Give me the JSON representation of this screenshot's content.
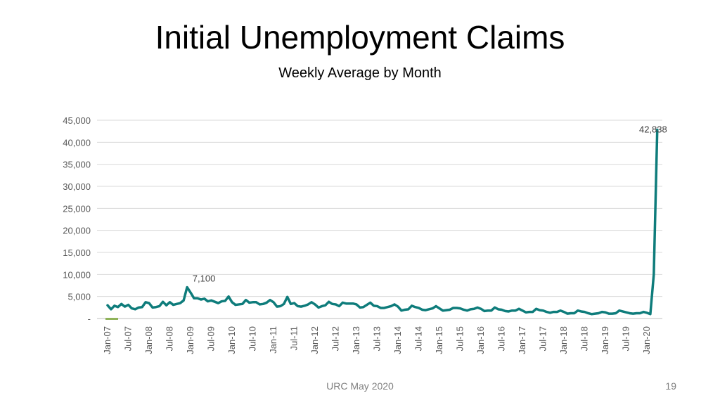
{
  "slide": {
    "title": "Initial Unemployment Claims",
    "subtitle": "Weekly Average by Month",
    "footer": "URC May 2020",
    "page_number": "19"
  },
  "chart_data": {
    "type": "line",
    "title": "Initial Unemployment Claims",
    "subtitle": "Weekly Average by Month",
    "xlabel": "",
    "ylabel": "",
    "ylim": [
      0,
      45000
    ],
    "y_ticks": [
      "-",
      "5,000",
      "10,000",
      "15,000",
      "20,000",
      "25,000",
      "30,000",
      "35,000",
      "40,000",
      "45,000"
    ],
    "x_tick_labels": [
      "Jan-07",
      "Jul-07",
      "Jan-08",
      "Jul-08",
      "Jan-09",
      "Jul-09",
      "Jan-10",
      "Jul-10",
      "Jan-11",
      "Jul-11",
      "Jan-12",
      "Jul-12",
      "Jan-13",
      "Jul-13",
      "Jan-14",
      "Jul-14",
      "Jan-15",
      "Jul-15",
      "Jan-16",
      "Jul-16",
      "Jan-17",
      "Jul-17",
      "Jan-18",
      "Jul-18",
      "Jan-19",
      "Jul-19",
      "Jan-20"
    ],
    "x_start": "Jan-07",
    "x_end": "Apr-20",
    "grid": true,
    "legend": "none",
    "line_color": "#0e7c7b",
    "series": [
      {
        "values": [
          3000,
          2100,
          2900,
          2600,
          3300,
          2700,
          3100,
          2300,
          2100,
          2500,
          2600,
          3700,
          3500,
          2500,
          2600,
          2800,
          3800,
          3000,
          3700,
          3100,
          3300,
          3500,
          4100,
          7100,
          5900,
          4600,
          4600,
          4300,
          4500,
          3900,
          4100,
          3800,
          3500,
          3900,
          4000,
          5000,
          3700,
          3100,
          3200,
          3300,
          4200,
          3600,
          3700,
          3700,
          3200,
          3300,
          3600,
          4200,
          3700,
          2700,
          2800,
          3300,
          4900,
          3300,
          3500,
          2800,
          2700,
          2900,
          3200,
          3700,
          3200,
          2500,
          2800,
          3000,
          3800,
          3300,
          3200,
          2800,
          3600,
          3400,
          3400,
          3400,
          3200,
          2500,
          2600,
          3100,
          3600,
          2900,
          2800,
          2400,
          2400,
          2600,
          2800,
          3200,
          2700,
          1800,
          2000,
          2100,
          2900,
          2600,
          2400,
          2000,
          1900,
          2100,
          2300,
          2800,
          2300,
          1800,
          1900,
          2000,
          2400,
          2400,
          2300,
          2000,
          1800,
          2100,
          2200,
          2500,
          2200,
          1700,
          1800,
          1800,
          2500,
          2100,
          2000,
          1700,
          1600,
          1800,
          1800,
          2200,
          1800,
          1400,
          1500,
          1500,
          2200,
          1900,
          1800,
          1500,
          1300,
          1500,
          1500,
          1800,
          1500,
          1100,
          1200,
          1200,
          1800,
          1600,
          1500,
          1200,
          1000,
          1100,
          1200,
          1500,
          1400,
          1100,
          1100,
          1200,
          1800,
          1600,
          1400,
          1200,
          1100,
          1200,
          1200,
          1500,
          1300,
          1000,
          10000,
          42838
        ]
      }
    ],
    "annotations": [
      {
        "label": "7,100",
        "index": 23,
        "value": 7100
      },
      {
        "label": "42,838",
        "index": 159,
        "value": 42838
      }
    ]
  }
}
